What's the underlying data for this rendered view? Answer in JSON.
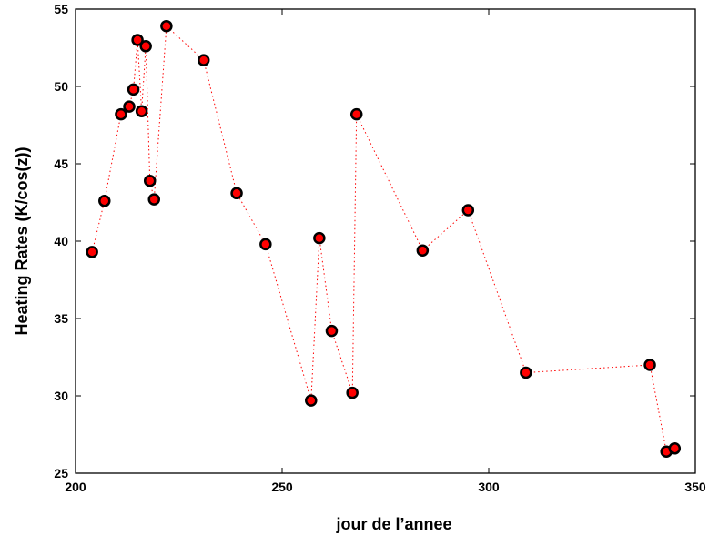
{
  "chart_data": {
    "type": "scatter",
    "title": "",
    "xlabel": "jour de l’annee",
    "ylabel": "Heating Rates (K/cos(z))",
    "xlim": [
      200,
      350
    ],
    "ylim": [
      25,
      55
    ],
    "xticks": [
      200,
      250,
      300,
      350
    ],
    "yticks": [
      25,
      30,
      35,
      40,
      45,
      50,
      55
    ],
    "grid": false,
    "legend": "none",
    "marker_fill": "#ff0000",
    "marker_edge": "#000000",
    "line_color": "#ff0000",
    "line_style": "dotted",
    "series": [
      {
        "x": [
          204,
          207,
          211,
          213,
          214,
          215,
          216,
          217,
          218,
          219,
          222,
          231,
          239,
          246,
          257,
          259,
          262,
          267,
          268,
          284,
          295,
          309,
          339,
          343,
          345
        ],
        "y": [
          39.3,
          42.6,
          48.2,
          48.7,
          49.8,
          53.0,
          48.4,
          52.6,
          43.9,
          42.7,
          53.9,
          51.7,
          43.1,
          39.8,
          29.7,
          40.2,
          34.2,
          30.2,
          48.2,
          39.4,
          42.0,
          31.5,
          32.0,
          26.4,
          26.6
        ]
      }
    ]
  }
}
